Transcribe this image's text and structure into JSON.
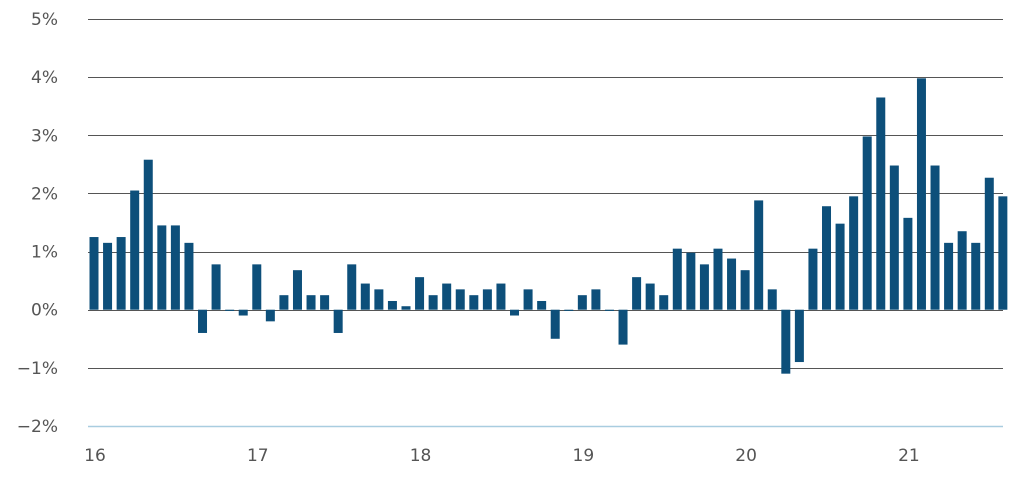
{
  "chart_data": {
    "type": "bar",
    "title": "",
    "xlabel": "",
    "ylabel": "",
    "ylim": [
      -2,
      5
    ],
    "y_ticks": [
      {
        "value": 5,
        "label": "5%"
      },
      {
        "value": 4,
        "label": "4%"
      },
      {
        "value": 3,
        "label": "3%"
      },
      {
        "value": 2,
        "label": "2%"
      },
      {
        "value": 1,
        "label": "1%"
      },
      {
        "value": 0,
        "label": "0%"
      },
      {
        "value": -1,
        "label": "−1%"
      },
      {
        "value": -2,
        "label": "−2%"
      }
    ],
    "x_ticks": [
      {
        "index": 0,
        "label": "16"
      },
      {
        "index": 12,
        "label": "17"
      },
      {
        "index": 24,
        "label": "18"
      },
      {
        "index": 36,
        "label": "19"
      },
      {
        "index": 48,
        "label": "20"
      },
      {
        "index": 60,
        "label": "21"
      }
    ],
    "grid": true,
    "bar_color": "#0d4f7a",
    "grid_color": "#555555",
    "baseline_color": "#a9cde0",
    "values": [
      1.25,
      1.15,
      1.25,
      2.05,
      2.58,
      1.45,
      1.45,
      1.15,
      -0.4,
      0.78,
      -0.02,
      -0.1,
      0.78,
      -0.2,
      0.25,
      0.68,
      0.25,
      0.25,
      -0.4,
      0.78,
      0.45,
      0.35,
      0.15,
      0.06,
      0.56,
      0.25,
      0.45,
      0.35,
      0.25,
      0.35,
      0.45,
      -0.1,
      0.35,
      0.15,
      -0.5,
      -0.02,
      0.25,
      0.35,
      -0.02,
      -0.6,
      0.56,
      0.45,
      0.25,
      1.05,
      0.98,
      0.78,
      1.05,
      0.88,
      0.68,
      1.88,
      0.35,
      -1.1,
      -0.9,
      1.05,
      1.78,
      1.48,
      1.95,
      2.98,
      3.65,
      2.48,
      1.58,
      3.98,
      2.48,
      1.15,
      1.35,
      1.15,
      2.27,
      1.95
    ]
  }
}
